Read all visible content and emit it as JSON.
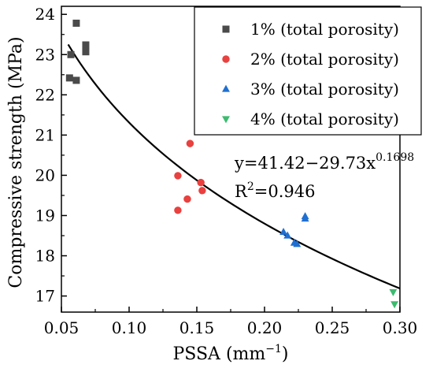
{
  "chart_data": {
    "type": "scatter",
    "xlabel": "PSSA (mm",
    "xlabel_sup": "−1",
    "xlabel_end": ")",
    "ylabel": "Compressive strength (MPa)",
    "xlim": [
      0.05,
      0.3
    ],
    "ylim": [
      16.6,
      24.2
    ],
    "x_ticks": [
      0.05,
      0.1,
      0.15,
      0.2,
      0.25,
      0.3
    ],
    "x_tick_labels": [
      "0.05",
      "0.10",
      "0.15",
      "0.20",
      "0.25",
      "0.30"
    ],
    "y_ticks": [
      17,
      18,
      19,
      20,
      21,
      22,
      23,
      24
    ],
    "y_tick_labels": [
      "17",
      "18",
      "19",
      "20",
      "21",
      "22",
      "23",
      "24"
    ],
    "grid": false,
    "legend_position": "top-right",
    "series": [
      {
        "name": "1% (total porosity)",
        "marker": "square",
        "color": "#4a4a4a",
        "points": [
          [
            0.056,
            22.42
          ],
          [
            0.057,
            23.0
          ],
          [
            0.061,
            23.78
          ],
          [
            0.061,
            22.36
          ],
          [
            0.068,
            23.07
          ],
          [
            0.068,
            23.24
          ]
        ]
      },
      {
        "name": "2% (total porosity)",
        "marker": "circle",
        "color": "#e8413f",
        "points": [
          [
            0.136,
            19.13
          ],
          [
            0.136,
            19.99
          ],
          [
            0.143,
            19.41
          ],
          [
            0.145,
            20.79
          ],
          [
            0.153,
            19.82
          ],
          [
            0.154,
            19.62
          ]
        ]
      },
      {
        "name": "3% (total porosity)",
        "marker": "triangle-up",
        "color": "#1f6fd0",
        "points": [
          [
            0.214,
            18.59
          ],
          [
            0.217,
            18.5
          ],
          [
            0.222,
            18.32
          ],
          [
            0.224,
            18.29
          ],
          [
            0.23,
            18.92
          ],
          [
            0.23,
            18.98
          ]
        ]
      },
      {
        "name": "4% (total porosity)",
        "marker": "triangle-down",
        "color": "#3dbb6f",
        "points": [
          [
            0.295,
            17.1
          ],
          [
            0.296,
            16.8
          ]
        ]
      }
    ],
    "fit": {
      "a": 41.42,
      "b": 29.73,
      "c": 0.1698,
      "color": "#000000",
      "x_range": [
        0.055,
        0.3
      ]
    },
    "annotation": {
      "equation_base": "y=41.42−29.73x",
      "equation_exp": "0.1698",
      "r2_prefix": "R",
      "r2_sup": "2",
      "r2_value": "=0.946"
    }
  }
}
